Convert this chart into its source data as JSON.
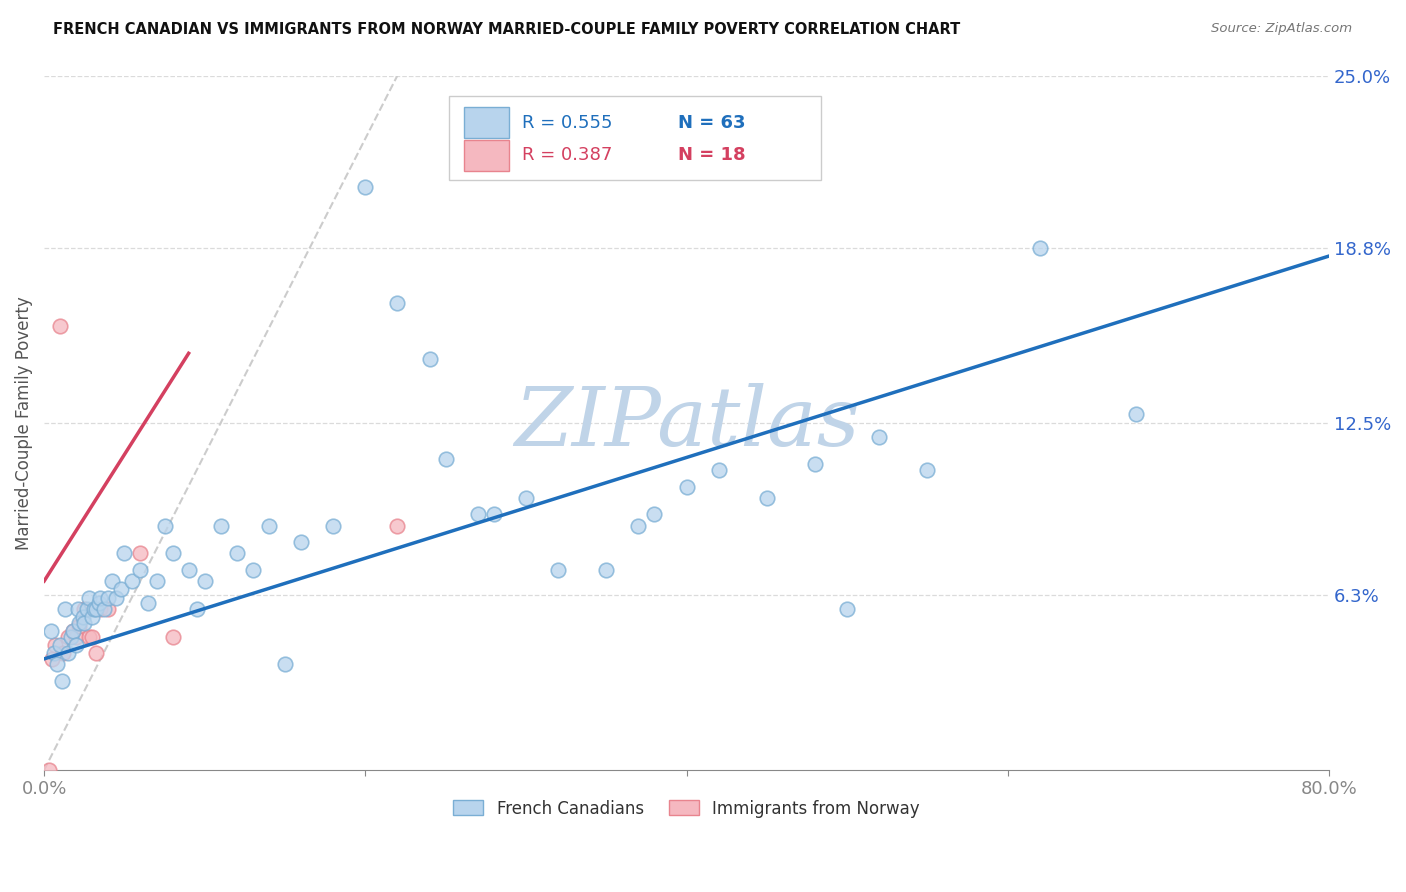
{
  "title": "FRENCH CANADIAN VS IMMIGRANTS FROM NORWAY MARRIED-COUPLE FAMILY POVERTY CORRELATION CHART",
  "source": "Source: ZipAtlas.com",
  "ylabel": "Married-Couple Family Poverty",
  "xlim": [
    0,
    0.8
  ],
  "ylim": [
    0,
    0.25
  ],
  "ytick_positions": [
    0.063,
    0.125,
    0.188,
    0.25
  ],
  "ytick_labels": [
    "6.3%",
    "12.5%",
    "18.8%",
    "25.0%"
  ],
  "background_color": "#ffffff",
  "watermark": "ZIPatlas",
  "watermark_color": "#c0d4e8",
  "blue_scatter_face": "#b8d4ed",
  "blue_scatter_edge": "#7aaed4",
  "pink_scatter_face": "#f5b8c0",
  "pink_scatter_edge": "#e8848e",
  "blue_line_color": "#1f6fbc",
  "pink_line_color": "#d44060",
  "ref_line_color": "#cccccc",
  "scatter_alpha": 0.75,
  "scatter_size": 110,
  "fc_x": [
    0.004,
    0.006,
    0.008,
    0.01,
    0.011,
    0.013,
    0.015,
    0.017,
    0.018,
    0.02,
    0.021,
    0.022,
    0.024,
    0.025,
    0.027,
    0.028,
    0.03,
    0.031,
    0.032,
    0.034,
    0.035,
    0.037,
    0.04,
    0.042,
    0.045,
    0.048,
    0.05,
    0.055,
    0.06,
    0.065,
    0.07,
    0.075,
    0.08,
    0.09,
    0.095,
    0.1,
    0.11,
    0.12,
    0.13,
    0.14,
    0.15,
    0.16,
    0.18,
    0.2,
    0.22,
    0.24,
    0.25,
    0.27,
    0.28,
    0.3,
    0.32,
    0.35,
    0.37,
    0.38,
    0.4,
    0.42,
    0.45,
    0.48,
    0.5,
    0.52,
    0.55,
    0.62,
    0.68
  ],
  "fc_y": [
    0.05,
    0.042,
    0.038,
    0.045,
    0.032,
    0.058,
    0.042,
    0.048,
    0.05,
    0.045,
    0.058,
    0.053,
    0.055,
    0.053,
    0.058,
    0.062,
    0.055,
    0.058,
    0.058,
    0.06,
    0.062,
    0.058,
    0.062,
    0.068,
    0.062,
    0.065,
    0.078,
    0.068,
    0.072,
    0.06,
    0.068,
    0.088,
    0.078,
    0.072,
    0.058,
    0.068,
    0.088,
    0.078,
    0.072,
    0.088,
    0.038,
    0.082,
    0.088,
    0.21,
    0.168,
    0.148,
    0.112,
    0.092,
    0.092,
    0.098,
    0.072,
    0.072,
    0.088,
    0.092,
    0.102,
    0.108,
    0.098,
    0.11,
    0.058,
    0.12,
    0.108,
    0.188,
    0.128
  ],
  "no_x": [
    0.003,
    0.005,
    0.007,
    0.01,
    0.012,
    0.015,
    0.018,
    0.02,
    0.022,
    0.025,
    0.028,
    0.03,
    0.032,
    0.035,
    0.04,
    0.06,
    0.08,
    0.22
  ],
  "no_y": [
    0.0,
    0.04,
    0.045,
    0.16,
    0.042,
    0.048,
    0.05,
    0.048,
    0.052,
    0.058,
    0.048,
    0.048,
    0.042,
    0.058,
    0.058,
    0.078,
    0.048,
    0.088
  ],
  "blue_line_x0": 0.0,
  "blue_line_y0": 0.04,
  "blue_line_x1": 0.8,
  "blue_line_y1": 0.185,
  "pink_line_x0": 0.0,
  "pink_line_y0": 0.068,
  "pink_line_x1": 0.09,
  "pink_line_y1": 0.15,
  "ref_line_x0": 0.0,
  "ref_line_y0": 0.0,
  "ref_line_x1": 0.22,
  "ref_line_y1": 0.25
}
